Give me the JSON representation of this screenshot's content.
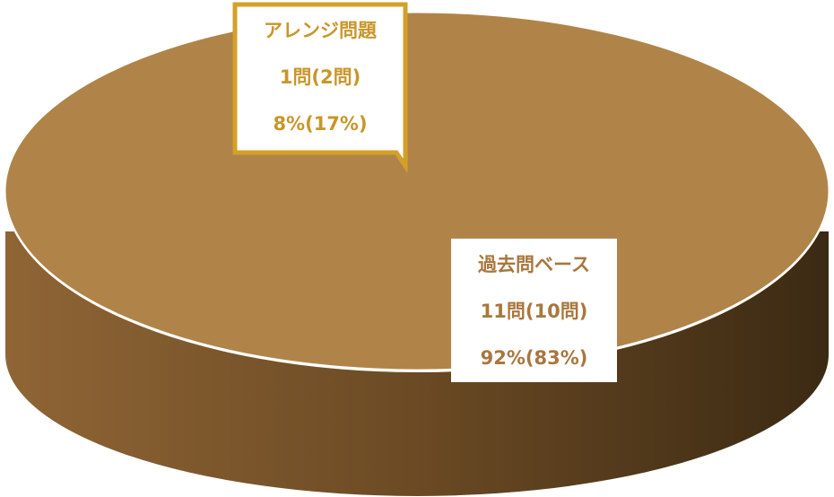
{
  "chart_data": {
    "type": "pie",
    "categories": [
      "アレンジ問題",
      "過去問ベース"
    ],
    "count_labels": [
      "1問(2問)",
      "11問(10問)"
    ],
    "values": [
      8,
      92
    ],
    "value_labels": [
      "8%(17%)",
      "92%(83%)"
    ],
    "colors": [
      "#b08448",
      "#b08448"
    ]
  }
}
